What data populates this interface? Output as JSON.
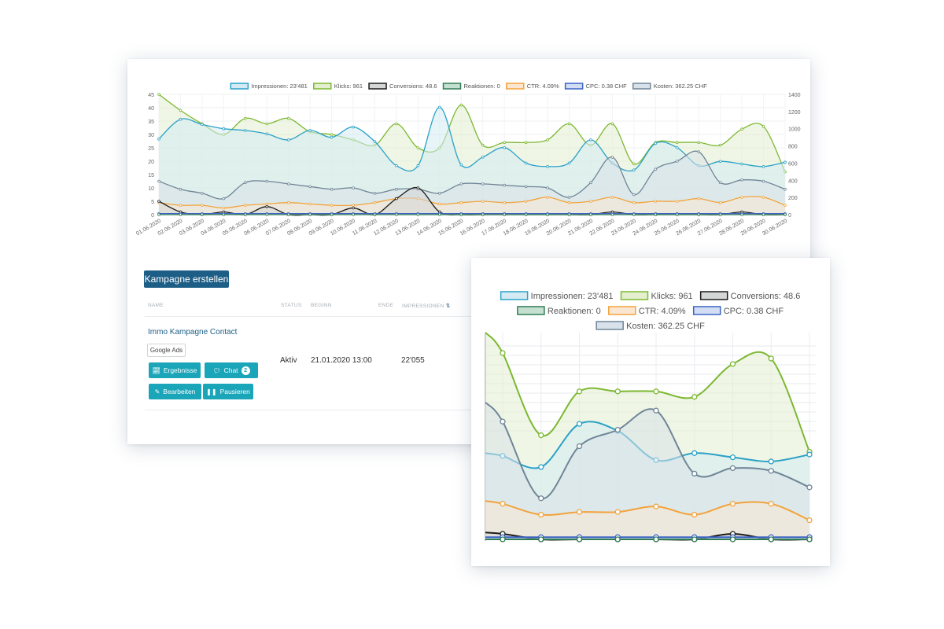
{
  "legend": [
    {
      "label": "Impressionen: 23'481",
      "fill": "#d4ebf3",
      "stroke": "#2aa1c8"
    },
    {
      "label": "Klicks: 961",
      "fill": "#e3efcf",
      "stroke": "#7cb832"
    },
    {
      "label": "Conversions: 48.6",
      "fill": "#d5d6d6",
      "stroke": "#1b1b1b"
    },
    {
      "label": "Reaktionen: 0",
      "fill": "#c5dfd0",
      "stroke": "#2f7d52"
    },
    {
      "label": "CTR: 4.09%",
      "fill": "#fbe7d1",
      "stroke": "#f2a33c"
    },
    {
      "label": "CPC: 0.38 CHF",
      "fill": "#d3def4",
      "stroke": "#3a63c4"
    },
    {
      "label": "Kosten: 362.25 CHF",
      "fill": "#d9e2ea",
      "stroke": "#6f8597"
    }
  ],
  "chart_data": {
    "type": "area",
    "x": [
      "01.06.2020",
      "02.06.2020",
      "03.06.2020",
      "04.06.2020",
      "05.06.2020",
      "06.06.2020",
      "07.06.2020",
      "08.06.2020",
      "09.06.2020",
      "10.06.2020",
      "11.06.2020",
      "12.06.2020",
      "13.06.2020",
      "14.06.2020",
      "15.06.2020",
      "16.06.2020",
      "17.06.2020",
      "18.06.2020",
      "19.06.2020",
      "20.06.2020",
      "21.06.2020",
      "22.06.2020",
      "23.06.2020",
      "24.06.2020",
      "25.06.2020",
      "26.06.2020",
      "27.06.2020",
      "28.06.2020",
      "29.06.2020",
      "30.06.2020"
    ],
    "y_left_ticks": [
      "0",
      "5",
      "10",
      "15",
      "20",
      "25",
      "30",
      "35",
      "40",
      "45"
    ],
    "y_right_ticks": [
      "0",
      "200",
      "400",
      "600",
      "800",
      "1000",
      "1200",
      "1400"
    ],
    "ylim_left": [
      0,
      45
    ],
    "ylim_right": [
      0,
      1400
    ],
    "series": [
      {
        "name": "Klicks",
        "axis": "left",
        "values": [
          45,
          39,
          34,
          30,
          36,
          34,
          36,
          31,
          30,
          28,
          26,
          34,
          25,
          25,
          41,
          26,
          27,
          27,
          28,
          34,
          26,
          34,
          19,
          27,
          27,
          27,
          26,
          32,
          33,
          16
        ]
      },
      {
        "name": "Impressionen",
        "axis": "right",
        "values": [
          880,
          1110,
          1050,
          1000,
          980,
          940,
          870,
          980,
          900,
          1020,
          850,
          570,
          570,
          1250,
          580,
          670,
          780,
          600,
          560,
          600,
          870,
          600,
          520,
          830,
          780,
          570,
          620,
          590,
          560,
          610
        ]
      },
      {
        "name": "Kosten",
        "axis": "left",
        "values": [
          12.5,
          9.5,
          8,
          6,
          12,
          12.5,
          11.5,
          10.5,
          9.5,
          10,
          8,
          9.5,
          9.5,
          8,
          11.5,
          11.5,
          11,
          10.5,
          10,
          6.5,
          12,
          21.5,
          7.5,
          17,
          20,
          23.5,
          12,
          13,
          12.5,
          9.5
        ]
      },
      {
        "name": "CTR",
        "axis": "left",
        "values": [
          4.5,
          3.5,
          3.5,
          2.5,
          3.5,
          4,
          4.5,
          4,
          3.5,
          3.5,
          4.5,
          6,
          6,
          4,
          4.5,
          5,
          4.5,
          5,
          6.5,
          4.5,
          5,
          6.5,
          4.5,
          5,
          5,
          6,
          4.5,
          6.5,
          6.5,
          3.5
        ]
      },
      {
        "name": "Conversions",
        "axis": "left",
        "values": [
          5,
          1,
          0,
          1,
          0,
          3,
          0,
          0,
          0,
          2.5,
          0,
          6,
          10,
          1,
          0,
          0,
          0,
          0,
          0,
          0,
          0,
          1,
          0,
          0,
          0,
          0,
          0,
          1,
          0,
          0
        ]
      },
      {
        "name": "CPC",
        "axis": "left",
        "values": [
          0.4,
          0.4,
          0.4,
          0.4,
          0.4,
          0.4,
          0.4,
          0.4,
          0.4,
          0.4,
          0.4,
          0.4,
          0.4,
          0.4,
          0.4,
          0.4,
          0.4,
          0.4,
          0.4,
          0.4,
          0.4,
          0.4,
          0.4,
          0.4,
          0.4,
          0.4,
          0.4,
          0.4,
          0.4,
          0.4
        ]
      },
      {
        "name": "Reaktionen",
        "axis": "left",
        "values": [
          0,
          0,
          0,
          0,
          0,
          0,
          0,
          0,
          0,
          0,
          0,
          0,
          0,
          0,
          0,
          0,
          0,
          0,
          0,
          0,
          0,
          0,
          0,
          0,
          0,
          0,
          0,
          0,
          0,
          0
        ]
      }
    ],
    "zoom_range": [
      "22.06.2020",
      "30.06.2020"
    ]
  },
  "campaign": {
    "create_button": "Kampagne erstellen",
    "headers": {
      "name": "NAME",
      "status": "STATUS",
      "beginn": "BEGINN",
      "ende": "ENDE",
      "impressionen": "IMPRESSIONEN"
    },
    "row": {
      "name": "Immo Kampagne Contact",
      "tag": "Google Ads",
      "status": "Aktiv",
      "beginn": "21.01.2020 13:00",
      "impressionen": "22'055",
      "buttons": {
        "ergebnisse": "Ergebnisse",
        "chat": "Chat",
        "chat_count": "2",
        "bearbeiten": "Bearbeiten",
        "pausieren": "Pausieren"
      }
    }
  }
}
